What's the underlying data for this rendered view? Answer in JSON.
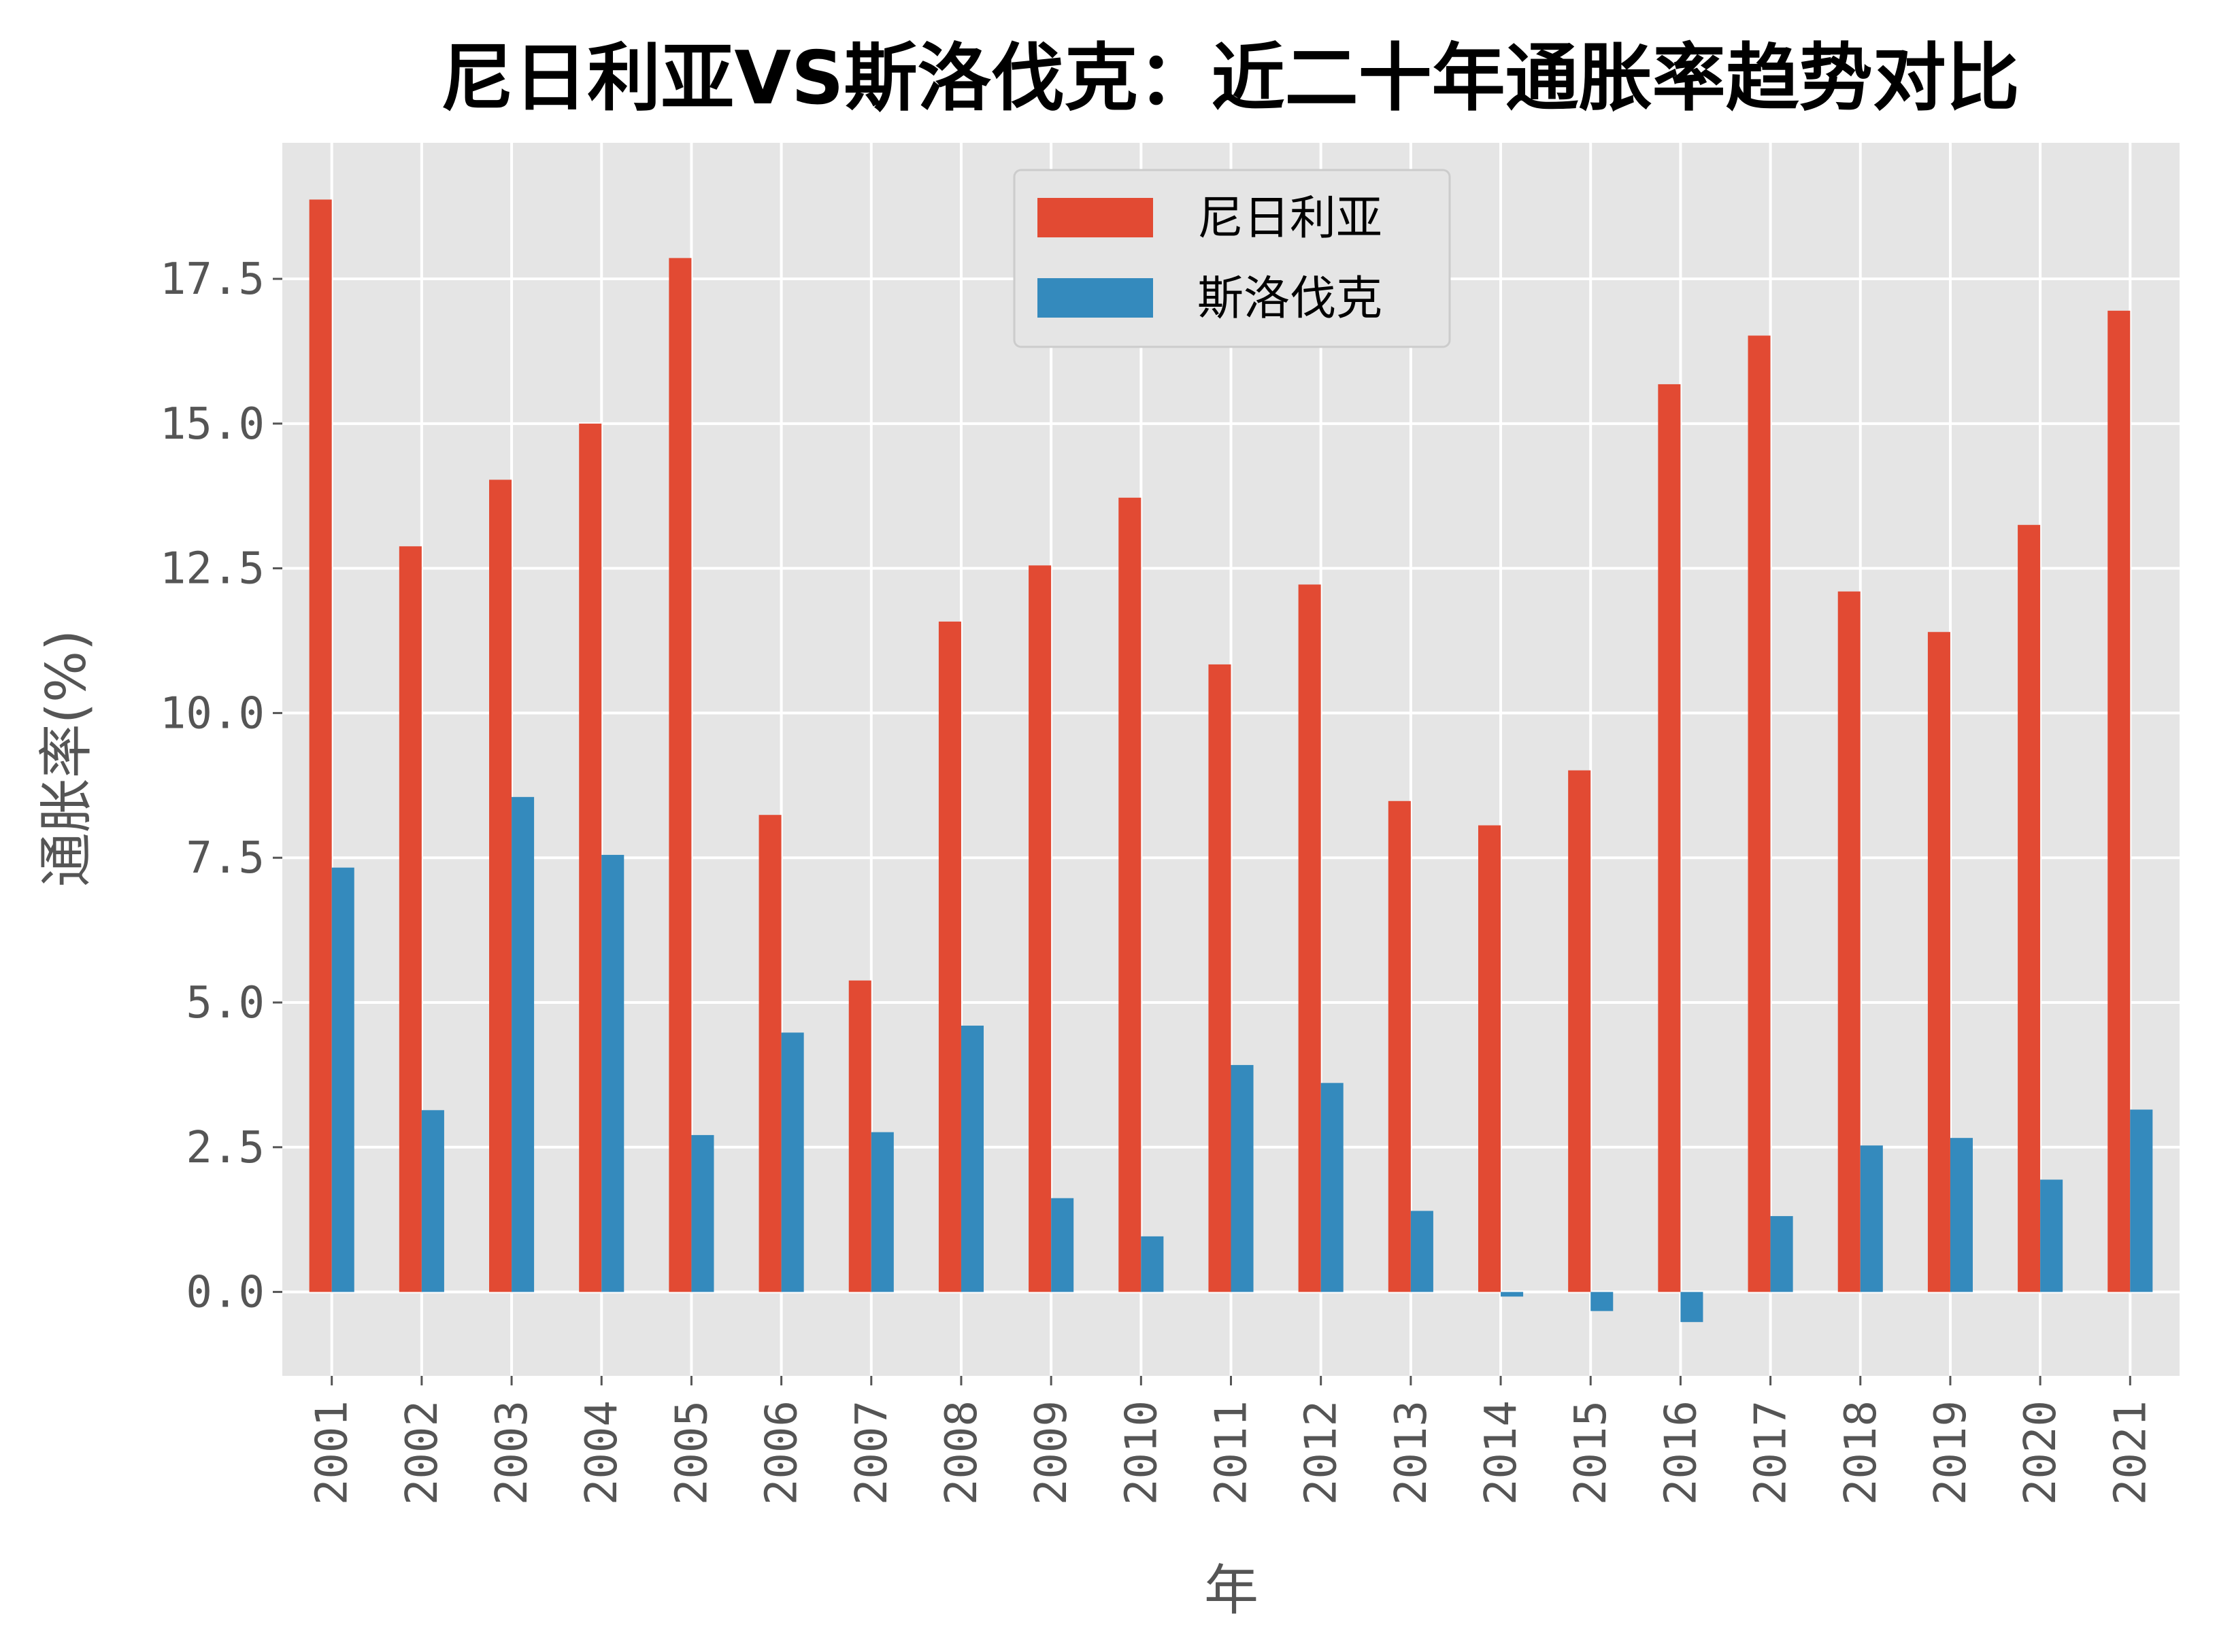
{
  "chart_data": {
    "type": "bar",
    "title": "尼日利亚VS斯洛伐克：近二十年通胀率趋势对比",
    "xlabel": "年",
    "ylabel": "通胀率(%)",
    "categories": [
      "2001",
      "2002",
      "2003",
      "2004",
      "2005",
      "2006",
      "2007",
      "2008",
      "2009",
      "2010",
      "2011",
      "2012",
      "2013",
      "2014",
      "2015",
      "2016",
      "2017",
      "2018",
      "2019",
      "2020",
      "2021"
    ],
    "series": [
      {
        "name": "尼日利亚",
        "color": "#E24A33",
        "values": [
          18.87,
          12.88,
          14.03,
          15.0,
          17.86,
          8.24,
          5.38,
          11.58,
          12.55,
          13.72,
          10.84,
          12.22,
          8.48,
          8.06,
          9.01,
          15.68,
          16.52,
          12.1,
          11.4,
          13.25,
          16.95
        ]
      },
      {
        "name": "斯洛伐克",
        "color": "#348ABD",
        "values": [
          7.33,
          3.14,
          8.55,
          7.55,
          2.71,
          4.48,
          2.76,
          4.6,
          1.62,
          0.96,
          3.92,
          3.61,
          1.4,
          -0.08,
          -0.33,
          -0.52,
          1.31,
          2.53,
          2.66,
          1.94,
          3.15
        ]
      }
    ],
    "ylim": [
      -1.45,
      19.85
    ],
    "yticks": [
      "0.0",
      "2.5",
      "5.0",
      "7.5",
      "10.0",
      "12.5",
      "15.0",
      "17.5"
    ],
    "grid": true,
    "legend_position": "top-center"
  }
}
